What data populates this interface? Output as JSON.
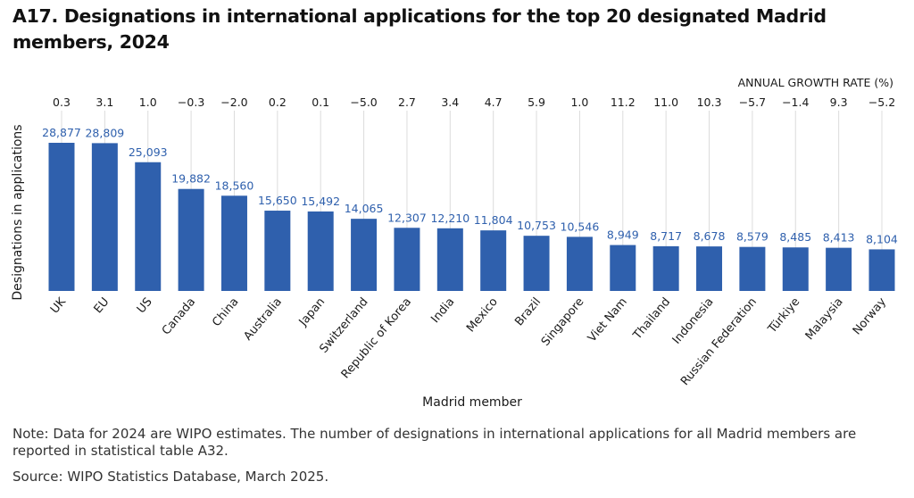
{
  "title": "A17. Designations in international applications for the top 20 designated Madrid members, 2024",
  "note": "Note: Data for 2024 are WIPO estimates. The number of designations in international applications for all Madrid members are reported in statistical table A32.",
  "source": "Source: WIPO Statistics Database, March 2025.",
  "colors": {
    "bar": "#2f60ad",
    "value_label": "#2f60ad",
    "gridline": "#dcdcdc",
    "text": "#1a1a1a"
  },
  "chart_data": {
    "type": "bar",
    "title": "A17. Designations in international applications for the top 20 designated Madrid members, 2024",
    "xlabel": "Madrid member",
    "ylabel": "Designations in applications",
    "secondary_label": "ANNUAL GROWTH RATE (%)",
    "categories": [
      "UK",
      "EU",
      "US",
      "Canada",
      "China",
      "Australia",
      "Japan",
      "Switzerland",
      "Republic of Korea",
      "India",
      "Mexico",
      "Brazil",
      "Singapore",
      "Viet Nam",
      "Thailand",
      "Indonesia",
      "Russian Federation",
      "Türkiye",
      "Malaysia",
      "Norway"
    ],
    "values": [
      28877,
      28809,
      25093,
      19882,
      18560,
      15650,
      15492,
      14065,
      12307,
      12210,
      11804,
      10753,
      10546,
      8949,
      8717,
      8678,
      8579,
      8485,
      8413,
      8104
    ],
    "value_labels": [
      "28,877",
      "28,809",
      "25,093",
      "19,882",
      "18,560",
      "15,650",
      "15,492",
      "14,065",
      "12,307",
      "12,210",
      "11,804",
      "10,753",
      "10,546",
      "8,949",
      "8,717",
      "8,678",
      "8,579",
      "8,485",
      "8,413",
      "8,104"
    ],
    "growth_rates": [
      "0.3",
      "3.1",
      "1.0",
      "−0.3",
      "−2.0",
      "0.2",
      "0.1",
      "−5.0",
      "2.7",
      "3.4",
      "4.7",
      "5.9",
      "1.0",
      "11.2",
      "11.0",
      "10.3",
      "−5.7",
      "−1.4",
      "9.3",
      "−5.2"
    ],
    "ylim": [
      0,
      28877
    ],
    "grid": "vertical guide lines per category",
    "legend": "none"
  }
}
